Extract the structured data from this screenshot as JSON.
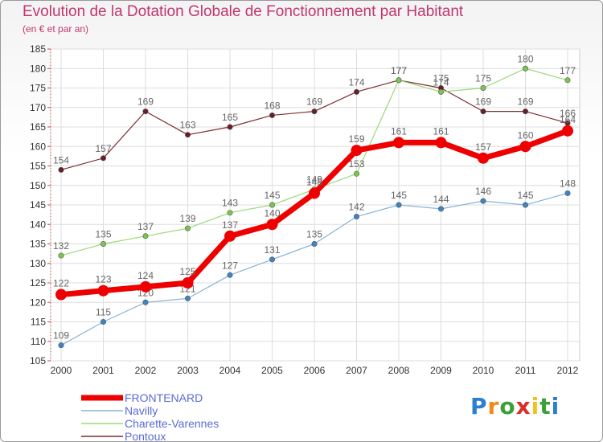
{
  "header": {
    "title": "Evolution de la Dotation Globale de Fonctionnement par Habitant",
    "subtitle": "(en € et par an)"
  },
  "logo": {
    "text": "Proxiti",
    "letters": [
      "P",
      "r",
      "o",
      "x",
      "i",
      "t",
      "i"
    ],
    "letter_colors": [
      "#2a7fd0",
      "#f08a1c",
      "#3aa03a",
      "#d6302b",
      "#f2c21b",
      "#3aa03a",
      "#2a7fd0"
    ]
  },
  "chart_data": {
    "type": "line",
    "title": "Evolution de la Dotation Globale de Fonctionnement par Habitant",
    "subtitle": "(en € et par an)",
    "xlabel": "",
    "ylabel": "",
    "ylim": [
      105,
      185
    ],
    "yticks": [
      105,
      110,
      115,
      120,
      125,
      130,
      135,
      140,
      145,
      150,
      155,
      160,
      165,
      170,
      175,
      180,
      185
    ],
    "grid": true,
    "legend_position": "bottom-left",
    "x": [
      "2000",
      "2001",
      "2002",
      "2003",
      "2004",
      "2005",
      "2006",
      "2007",
      "2008",
      "2009",
      "2010",
      "2011",
      "2012"
    ],
    "series": [
      {
        "name": "Pontoux",
        "color": "#7a2e33",
        "point_color": "#6b1c24",
        "width": 1.2,
        "values": [
          154,
          157,
          169,
          163,
          165,
          168,
          169,
          174,
          177,
          175,
          169,
          169,
          166
        ],
        "labels": [
          "154",
          "157",
          "169",
          "163",
          "165",
          "168",
          "169",
          "174",
          "177",
          "175",
          "169",
          "169",
          "166"
        ]
      },
      {
        "name": "Charette-Varennes",
        "color": "#9bd97a",
        "point_color": "#7ac74f",
        "width": 1.2,
        "values": [
          132,
          135,
          137,
          139,
          143,
          145,
          149,
          153,
          177,
          174,
          175,
          180,
          177
        ],
        "labels": [
          "132",
          "135",
          "137",
          "139",
          "143",
          "145",
          "149",
          "153",
          "177",
          "174",
          "175",
          "180",
          "177"
        ]
      },
      {
        "name": "Navilly",
        "color": "#8ab2d6",
        "point_color": "#3b86c6",
        "width": 1.2,
        "values": [
          109,
          115,
          120,
          121,
          127,
          131,
          135,
          142,
          145,
          144,
          146,
          145,
          148
        ],
        "labels": [
          "109",
          "115",
          "120",
          "121",
          "127",
          "131",
          "135",
          "142",
          "145",
          "144",
          "146",
          "145",
          "148"
        ]
      },
      {
        "name": "FRONTENARD",
        "color": "#ee0000",
        "point_color": "#ee0000",
        "width": 7,
        "values": [
          122,
          123,
          124,
          125,
          137,
          140,
          148,
          159,
          161,
          161,
          157,
          160,
          164
        ],
        "labels": [
          "122",
          "123",
          "124",
          "125",
          "137",
          "140",
          "148",
          "159",
          "161",
          "161",
          "157",
          "160",
          "164"
        ]
      }
    ],
    "legend": [
      "FRONTENARD",
      "Navilly",
      "Charette-Varennes",
      "Pontoux"
    ]
  }
}
